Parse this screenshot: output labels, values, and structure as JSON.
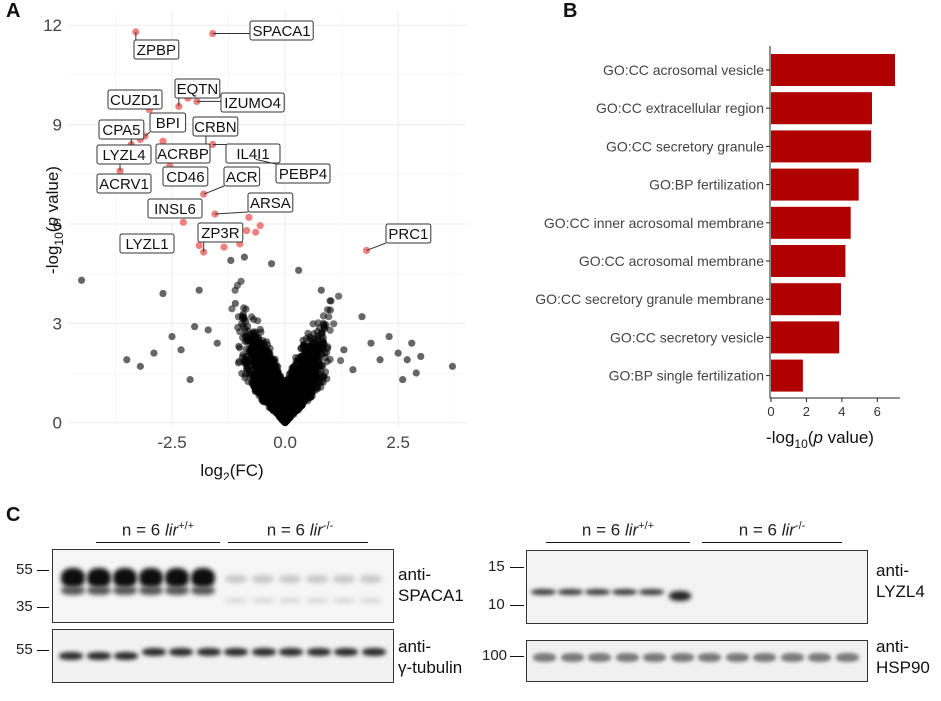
{
  "panels": {
    "a": "A",
    "b": "B",
    "c": "C"
  },
  "volcano": {
    "xlabel_main": "log",
    "xlabel_sub": "2",
    "xlabel_tail": "(FC)",
    "ylabel_pre": "-log",
    "ylabel_sub": "10",
    "ylabel_open": "(",
    "ylabel_italic": "p",
    "ylabel_tail": " value)",
    "xticks": [
      {
        "label": "-2.5",
        "value": -2.5
      },
      {
        "label": "0.0",
        "value": 0
      },
      {
        "label": "2.5",
        "value": 2.5
      }
    ],
    "yticks": [
      {
        "label": "0",
        "value": 0
      },
      {
        "label": "3",
        "value": 3
      },
      {
        "label": "6",
        "value": 6
      },
      {
        "label": "9",
        "value": 9
      },
      {
        "label": "12",
        "value": 12
      }
    ],
    "colors": {
      "sig": "#f08080",
      "nonsig": "#000000",
      "grid": "#ebebeb"
    },
    "sig_points": [
      [
        -3.3,
        11.8
      ],
      [
        -1.6,
        11.75
      ],
      [
        -2.35,
        9.55
      ],
      [
        -2.15,
        9.8
      ],
      [
        -1.95,
        9.7
      ],
      [
        -3.0,
        9.45
      ],
      [
        -3.1,
        8.65
      ],
      [
        -3.2,
        8.55
      ],
      [
        -3.4,
        8.4
      ],
      [
        -3.55,
        8.2
      ],
      [
        -2.7,
        8.5
      ],
      [
        -1.6,
        8.4
      ],
      [
        -1.75,
        8.3
      ],
      [
        -0.65,
        7.95
      ],
      [
        -2.55,
        7.75
      ],
      [
        -3.65,
        7.6
      ],
      [
        -1.8,
        6.9
      ],
      [
        -2.4,
        6.4
      ],
      [
        -1.55,
        6.3
      ],
      [
        -0.8,
        6.2
      ],
      [
        -0.55,
        5.95
      ],
      [
        -0.65,
        5.75
      ],
      [
        -0.85,
        5.8
      ],
      [
        -1.1,
        5.55
      ],
      [
        -1.0,
        5.4
      ],
      [
        -1.35,
        5.3
      ],
      [
        -1.9,
        5.35
      ],
      [
        -2.25,
        6.05
      ],
      [
        -1.8,
        5.15
      ],
      [
        -3.0,
        5.55
      ],
      [
        1.8,
        5.2
      ]
    ],
    "labels": [
      {
        "text": "SPACA1",
        "x": -1.6,
        "y": 11.75
      },
      {
        "text": "ZPBP",
        "x": -3.3,
        "y": 11.8
      },
      {
        "text": "EQTN",
        "x": -2.35,
        "y": 9.55
      },
      {
        "text": "CUZD1",
        "x": -3.0,
        "y": 9.45
      },
      {
        "text": "IZUMO4",
        "x": -1.95,
        "y": 9.7
      },
      {
        "text": "BPI",
        "x": -3.1,
        "y": 8.65
      },
      {
        "text": "CRBN",
        "x": -1.75,
        "y": 8.3
      },
      {
        "text": "CPA5",
        "x": -3.4,
        "y": 8.4
      },
      {
        "text": "LYZL4",
        "x": -3.65,
        "y": 7.6
      },
      {
        "text": "ACRBP",
        "x": -2.7,
        "y": 8.5
      },
      {
        "text": "IL4I1",
        "x": -1.6,
        "y": 8.4
      },
      {
        "text": "ACRV1",
        "x": -3.65,
        "y": 7.6
      },
      {
        "text": "CD46",
        "x": -2.55,
        "y": 7.75
      },
      {
        "text": "ACR",
        "x": -1.8,
        "y": 6.9
      },
      {
        "text": "PEBP4",
        "x": -0.65,
        "y": 7.95
      },
      {
        "text": "ARSA",
        "x": -1.55,
        "y": 6.3
      },
      {
        "text": "INSL6",
        "x": -2.4,
        "y": 6.4
      },
      {
        "text": "ZP3R",
        "x": -1.8,
        "y": 5.15
      },
      {
        "text": "PRC1",
        "x": 1.8,
        "y": 5.2
      },
      {
        "text": "LYZL1",
        "x": -3.0,
        "y": 5.55
      }
    ]
  },
  "chart_data": [
    {
      "type": "scatter",
      "title": "",
      "xlabel": "log2(FC)",
      "ylabel": "-log10(p value)",
      "xlim": [
        -4.8,
        4.0
      ],
      "ylim": [
        -0.1,
        12.4
      ],
      "series": [
        {
          "name": "significant",
          "color": "#f08080",
          "points_ref": "volcano.sig_points"
        },
        {
          "name": "not significant",
          "color": "#000000",
          "note": "dense cloud centered near 0"
        }
      ]
    },
    {
      "type": "bar",
      "orientation": "horizontal",
      "xlabel": "-log10(p value)",
      "xlim": [
        0,
        7
      ],
      "categories": [
        "GO:CC acrosomal vesicle",
        "GO:CC extracellular region",
        "GO:CC secretory granule",
        "GO:BP fertilization",
        "GO:CC inner acrosomal membrane",
        "GO:CC acrosomal membrane",
        "GO:CC secretory granule membrane",
        "GO:CC secretory vesicle",
        "GO:BP single fertilization"
      ],
      "values": [
        7.0,
        5.7,
        5.65,
        4.95,
        4.5,
        4.2,
        3.95,
        3.85,
        1.8
      ],
      "color": "#b00000"
    }
  ],
  "bars": {
    "xticks": [
      {
        "label": "0",
        "value": 0
      },
      {
        "label": "2",
        "value": 2
      },
      {
        "label": "4",
        "value": 4
      },
      {
        "label": "6",
        "value": 6
      }
    ],
    "xlabel_pre": "-log",
    "xlabel_sub": "10",
    "xlabel_open": "(",
    "xlabel_italic": "p",
    "xlabel_tail": " value)"
  },
  "blots": {
    "left": {
      "group1": {
        "prefix": "n = 6 ",
        "gene": "lir",
        "sup": "+/+"
      },
      "group2": {
        "prefix": "n = 6 ",
        "gene": "lir",
        "sup": "-/-"
      },
      "top": {
        "mw": [
          "55",
          "35"
        ],
        "label1": "anti-",
        "label2": "SPACA1"
      },
      "bottom": {
        "mw": [
          "55"
        ],
        "label1": "anti-",
        "label2": "γ-tubulin"
      }
    },
    "right": {
      "group1": {
        "prefix": "n = 6 ",
        "gene": "lir",
        "sup": "+/+"
      },
      "group2": {
        "prefix": "n = 6 ",
        "gene": "lir",
        "sup": "-/-"
      },
      "top": {
        "mw": [
          "15",
          "10"
        ],
        "label1": "anti-",
        "label2": "LYZL4"
      },
      "bottom": {
        "mw": [
          "100"
        ],
        "label1": "anti-",
        "label2": "HSP90"
      }
    }
  }
}
